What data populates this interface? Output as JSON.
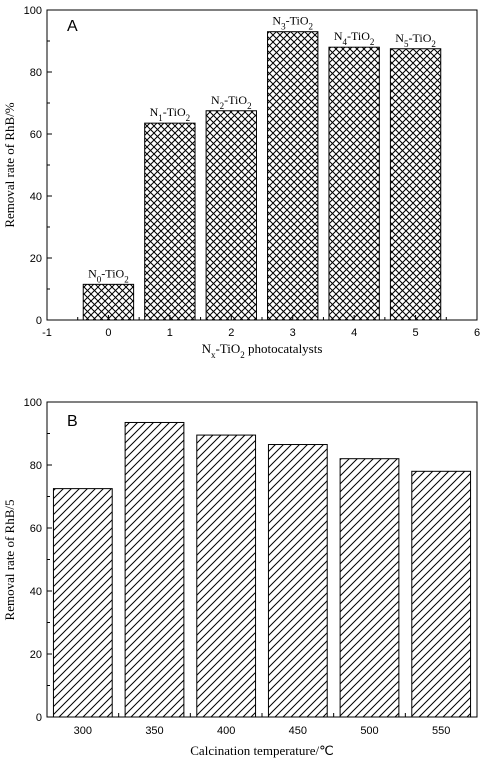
{
  "chart_data": [
    {
      "type": "bar",
      "panel_label": "A",
      "x": [
        0,
        1,
        2,
        3,
        4,
        5
      ],
      "values": [
        11.5,
        63.5,
        67.5,
        93,
        88,
        87.5
      ],
      "bar_labels": [
        {
          "base": "N",
          "sub": "0",
          "rest": "-TiO",
          "sub2": "2"
        },
        {
          "base": "N",
          "sub": "1",
          "rest": "-TiO",
          "sub2": "2"
        },
        {
          "base": "N",
          "sub": "2",
          "rest": "-TiO",
          "sub2": "2"
        },
        {
          "base": "N",
          "sub": "3",
          "rest": "-TiO",
          "sub2": "2"
        },
        {
          "base": "N",
          "sub": "4",
          "rest": "-TiO",
          "sub2": "2"
        },
        {
          "base": "N",
          "sub": "5",
          "rest": "-TiO",
          "sub2": "2"
        }
      ],
      "xticks": [
        "-1",
        "0",
        "1",
        "2",
        "3",
        "4",
        "5",
        "6"
      ],
      "xlim": [
        -1,
        6
      ],
      "yticks": [
        "0",
        "20",
        "40",
        "60",
        "80",
        "100"
      ],
      "ylim": [
        0,
        100
      ],
      "ylabel": "Removal rate of RhB/%",
      "xlabel": {
        "base": "N",
        "sub": "x",
        "mid": "-TiO",
        "sub2": "2",
        "tail": " photocatalysts"
      },
      "fill_pattern": "crosshatch"
    },
    {
      "type": "bar",
      "panel_label": "B",
      "categories": [
        "300",
        "350",
        "400",
        "450",
        "500",
        "550"
      ],
      "values": [
        72.5,
        93.5,
        89.5,
        86.5,
        82,
        78
      ],
      "yticks": [
        "0",
        "20",
        "40",
        "60",
        "80",
        "100"
      ],
      "ylim": [
        0,
        100
      ],
      "ylabel": "Removal rate of RhB/5",
      "xlabel": "Calcination temperature/℃",
      "fill_pattern": "diagonal"
    }
  ]
}
